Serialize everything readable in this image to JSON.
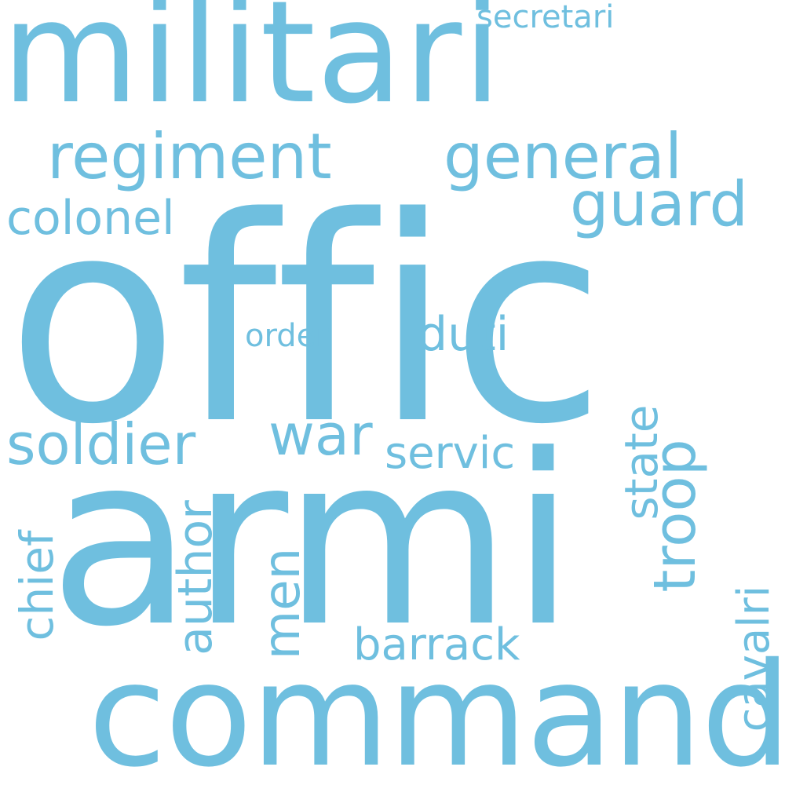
{
  "cloud": {
    "color": "#6fbfdf",
    "background": "#ffffff",
    "words": {
      "militari": "militari",
      "offic": "offic",
      "armi": "armi",
      "command": "command",
      "regiment": "regiment",
      "general": "general",
      "guard": "guard",
      "colonel": "colonel",
      "soldier": "soldier",
      "war": "war",
      "servic": "servic",
      "troop": "troop",
      "state": "state",
      "order": "order",
      "duti": "duti",
      "chief": "chief",
      "author": "author",
      "men": "men",
      "barrack": "barrack",
      "cavalri": "cavalri",
      "secretari": "secretari"
    }
  }
}
